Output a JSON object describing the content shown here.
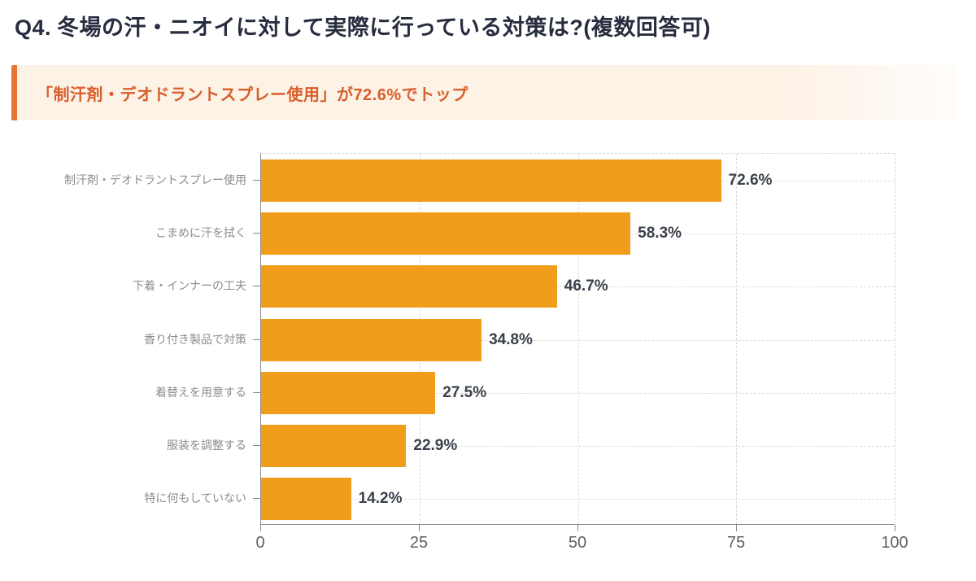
{
  "header": {
    "title_prefix": "Q4.",
    "title_text": "冬場の汗・ニオイに対して実際に行っている対策は?(複数回答可)"
  },
  "callout": {
    "text": "「制汗剤・デオドラントスプレー使用」が72.6%でトップ",
    "accent_border_color": "#e8752f",
    "text_color": "#d85f2b",
    "background_left_color": "#fdf2e6",
    "background_right_color": "#fffdfb"
  },
  "chart_data": {
    "type": "bar",
    "orientation": "horizontal",
    "title": "",
    "xlabel": "",
    "ylabel": "",
    "categories": [
      "制汗剤・デオドラントスプレー使用",
      "こまめに汗を拭く",
      "下着・インナーの工夫",
      "香り付き製品で対策",
      "着替えを用意する",
      "服装を調整する",
      "特に何もしていない"
    ],
    "values": [
      72.6,
      58.3,
      46.7,
      34.8,
      27.5,
      22.9,
      14.2
    ],
    "value_labels": [
      "72.6%",
      "58.3%",
      "46.7%",
      "34.8%",
      "27.5%",
      "22.9%",
      "14.2%"
    ],
    "unit": "%",
    "x_ticks": [
      "0",
      "25",
      "50",
      "75",
      "100"
    ],
    "x_tick_values": [
      0,
      25,
      50,
      75,
      100
    ],
    "xlim": [
      0,
      100
    ],
    "bar_color": "#f09d1b",
    "grid_style": "dashed",
    "grid_color": "#d9d9d9",
    "legend": "none"
  }
}
